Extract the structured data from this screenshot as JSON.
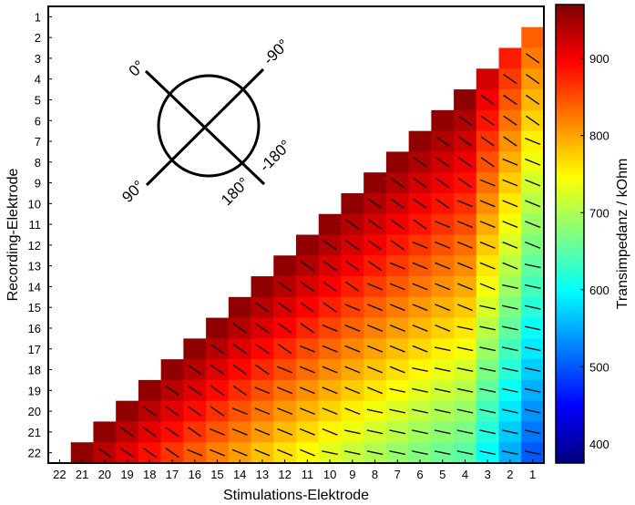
{
  "chart_data": {
    "type": "heatmap",
    "xlabel": "Stimulations-Elektrode",
    "ylabel": "Recording-Elektrode",
    "x_categories": [
      "22",
      "21",
      "20",
      "19",
      "18",
      "17",
      "16",
      "15",
      "14",
      "13",
      "12",
      "11",
      "10",
      "9",
      "8",
      "7",
      "6",
      "5",
      "4",
      "3",
      "2",
      "1"
    ],
    "y_categories": [
      "1",
      "2",
      "3",
      "4",
      "5",
      "6",
      "7",
      "8",
      "9",
      "10",
      "11",
      "12",
      "13",
      "14",
      "15",
      "16",
      "17",
      "18",
      "19",
      "20",
      "21",
      "22"
    ],
    "mask": "lower-triangle: cell exists when recording electrode > stimulation electrode",
    "value_model": {
      "description": "Transimpedance decreases with stimulation electrode number and increases toward the diagonal",
      "diagonal_value": 960,
      "min_value": 380
    },
    "colorbar": {
      "label": "Transimpedanz / kOhm",
      "colormap": "jet",
      "range": [
        375,
        970
      ],
      "ticks": [
        "400",
        "500",
        "600",
        "700",
        "800",
        "900"
      ]
    },
    "phase_arrows": true,
    "annotation": {
      "labels": [
        "0°",
        "-90°",
        "90°",
        "180°",
        "-180°"
      ]
    }
  }
}
